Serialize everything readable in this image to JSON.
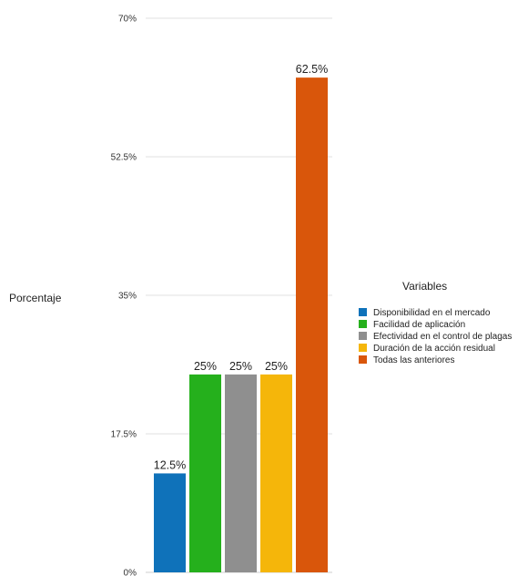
{
  "chart_data": {
    "type": "bar",
    "ylabel": "Porcentaje",
    "yticks": [
      "0%",
      "17.5%",
      "35%",
      "52.5%",
      "70%"
    ],
    "ylim": [
      0,
      70
    ],
    "legend_title": "Variables",
    "legend_position": "right",
    "grid": true,
    "categories": [
      "Disponibilidad en el mercado",
      "Facilidad de aplicación",
      "Efectividad en el control de plagas",
      "Duración de la acción residual",
      "Todas las anteriores"
    ],
    "values": [
      12.5,
      25,
      25,
      25,
      62.5
    ],
    "value_labels": [
      "12.5%",
      "25%",
      "25%",
      "25%",
      "62.5%"
    ],
    "colors": [
      "#0f72ba",
      "#25b01c",
      "#8f8f8f",
      "#f5b60a",
      "#d9560b"
    ]
  }
}
